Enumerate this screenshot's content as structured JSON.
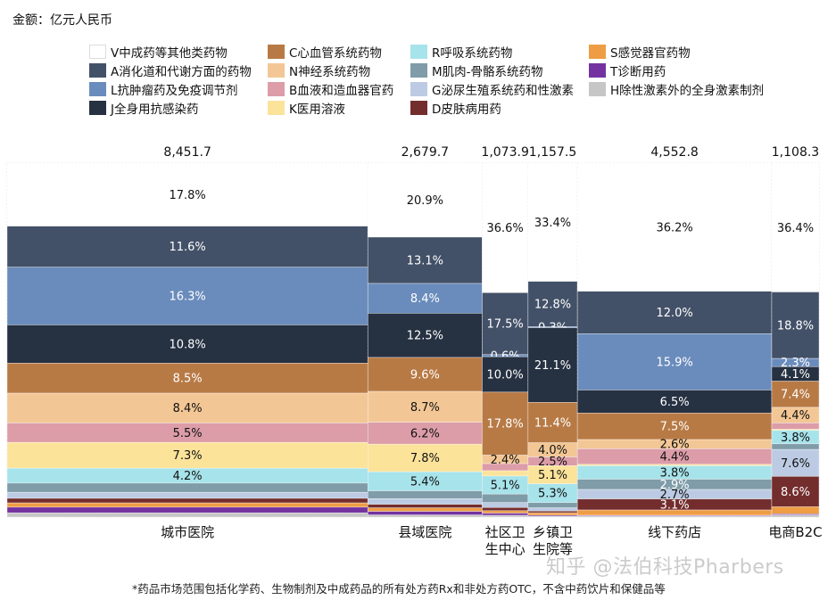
{
  "unit_label": "金额：亿元人民币",
  "footnote": "*药品市场范围包括化学药、生物制剂及中成药品的所有处方药Rx和非处方药OTC，不含中药饮片和保健品等",
  "watermark": "知乎 @法伯科技Pharbers",
  "chart_data": {
    "type": "marimekko",
    "title": "",
    "unit": "亿元人民币",
    "legend_position": "top",
    "categories": [
      "城市医院",
      "县域医院",
      "社区卫生中心",
      "乡镇卫生院等",
      "线下药店",
      "电商B2C"
    ],
    "category_labels": [
      [
        "城市医院"
      ],
      [
        "县域医院"
      ],
      [
        "社区卫",
        "生中心"
      ],
      [
        "乡镇卫",
        "生院等"
      ],
      [
        "线下药店"
      ],
      [
        "电商B2C"
      ]
    ],
    "totals": [
      8451.7,
      2679.7,
      1073.9,
      1157.5,
      4552.8,
      1108.3
    ],
    "total_labels": [
      "8,451.7",
      "2,679.7",
      "1,073.9",
      "1,157.5",
      "4,552.8",
      "1,108.3"
    ],
    "series": [
      {
        "key": "V",
        "name": "V中成药等其他类药物",
        "color": "#ffffff",
        "text": "#111111",
        "values": [
          17.8,
          20.9,
          36.6,
          33.4,
          36.2,
          36.4
        ],
        "labeled": [
          true,
          true,
          true,
          true,
          true,
          true
        ]
      },
      {
        "key": "A",
        "name": "A消化道和代谢方面的药物",
        "color": "#435168",
        "text": "#ffffff",
        "values": [
          11.6,
          13.1,
          17.5,
          12.8,
          12.0,
          18.8
        ],
        "labeled": [
          true,
          true,
          true,
          true,
          true,
          true
        ]
      },
      {
        "key": "L",
        "name": "L抗肿瘤药及免疫调节剂",
        "color": "#6a8cbc",
        "text": "#ffffff",
        "values": [
          16.3,
          8.4,
          0.6,
          0.3,
          15.9,
          2.3
        ],
        "labeled": [
          true,
          true,
          true,
          true,
          true,
          true
        ]
      },
      {
        "key": "J",
        "name": "J全身用抗感染药",
        "color": "#263142",
        "text": "#ffffff",
        "values": [
          10.8,
          12.5,
          10.0,
          21.1,
          6.5,
          4.1
        ],
        "labeled": [
          true,
          true,
          true,
          true,
          true,
          true
        ]
      },
      {
        "key": "C",
        "name": "C心血管系统药物",
        "color": "#b87a45",
        "text": "#ffffff",
        "values": [
          8.5,
          9.6,
          17.8,
          11.4,
          7.5,
          7.4
        ],
        "labeled": [
          true,
          true,
          true,
          true,
          true,
          true
        ]
      },
      {
        "key": "N",
        "name": "N神经系统药物",
        "color": "#f3c795",
        "text": "#111111",
        "values": [
          8.4,
          8.7,
          2.4,
          4.0,
          2.6,
          4.4
        ],
        "labeled": [
          true,
          true,
          true,
          true,
          true,
          true
        ]
      },
      {
        "key": "B",
        "name": "B血液和造血器官药",
        "color": "#dc9da8",
        "text": "#111111",
        "values": [
          5.5,
          6.2,
          2.0,
          2.5,
          4.4,
          1.8
        ],
        "labeled": [
          true,
          true,
          false,
          true,
          true,
          false
        ]
      },
      {
        "key": "K",
        "name": "K医用溶液",
        "color": "#fce39a",
        "text": "#111111",
        "values": [
          7.3,
          7.8,
          1.5,
          5.1,
          0.4,
          0.3
        ],
        "labeled": [
          true,
          true,
          false,
          true,
          false,
          false
        ]
      },
      {
        "key": "R",
        "name": "R呼吸系统药物",
        "color": "#a7e3ea",
        "text": "#111111",
        "values": [
          4.2,
          5.4,
          5.1,
          5.3,
          3.8,
          3.8
        ],
        "labeled": [
          true,
          true,
          true,
          true,
          true,
          true
        ]
      },
      {
        "key": "M",
        "name": "M肌肉-骨骼系统药物",
        "color": "#7f9ca8",
        "text": "#ffffff",
        "values": [
          2.6,
          2.2,
          2.4,
          1.5,
          2.9,
          1.6
        ],
        "labeled": [
          false,
          false,
          false,
          false,
          true,
          false
        ]
      },
      {
        "key": "G",
        "name": "G泌尿生殖系统药和性激素",
        "color": "#bccbe3",
        "text": "#111111",
        "values": [
          1.7,
          1.6,
          1.4,
          0.9,
          2.7,
          7.6
        ],
        "labeled": [
          false,
          false,
          false,
          false,
          true,
          true
        ]
      },
      {
        "key": "D",
        "name": "D皮肤病用药",
        "color": "#742d2d",
        "text": "#ffffff",
        "values": [
          1.3,
          1.0,
          0.9,
          0.5,
          3.1,
          8.6
        ],
        "labeled": [
          false,
          false,
          false,
          false,
          true,
          true
        ]
      },
      {
        "key": "S",
        "name": "S感觉器官药物",
        "color": "#ee9d45",
        "text": "#111111",
        "values": [
          1.2,
          1.0,
          0.7,
          0.7,
          1.5,
          2.0
        ],
        "labeled": [
          false,
          false,
          false,
          false,
          false,
          false
        ]
      },
      {
        "key": "T",
        "name": "T诊断用药",
        "color": "#7332a0",
        "text": "#ffffff",
        "values": [
          1.6,
          1.0,
          0.6,
          0.3,
          0.2,
          0.3
        ],
        "labeled": [
          false,
          false,
          false,
          false,
          false,
          false
        ]
      },
      {
        "key": "H",
        "name": "H除性激素外的全身激素制剂",
        "color": "#c6c6c6",
        "text": "#111111",
        "values": [
          1.2,
          0.6,
          0.5,
          0.2,
          0.3,
          0.6
        ],
        "labeled": [
          false,
          false,
          false,
          false,
          false,
          false
        ]
      }
    ],
    "legend_layout_columns": [
      [
        "V",
        "A",
        "L",
        "J"
      ],
      [
        "C",
        "N",
        "B",
        "K"
      ],
      [
        "R",
        "M",
        "G",
        "D"
      ],
      [
        "S",
        "T",
        "H"
      ]
    ]
  }
}
